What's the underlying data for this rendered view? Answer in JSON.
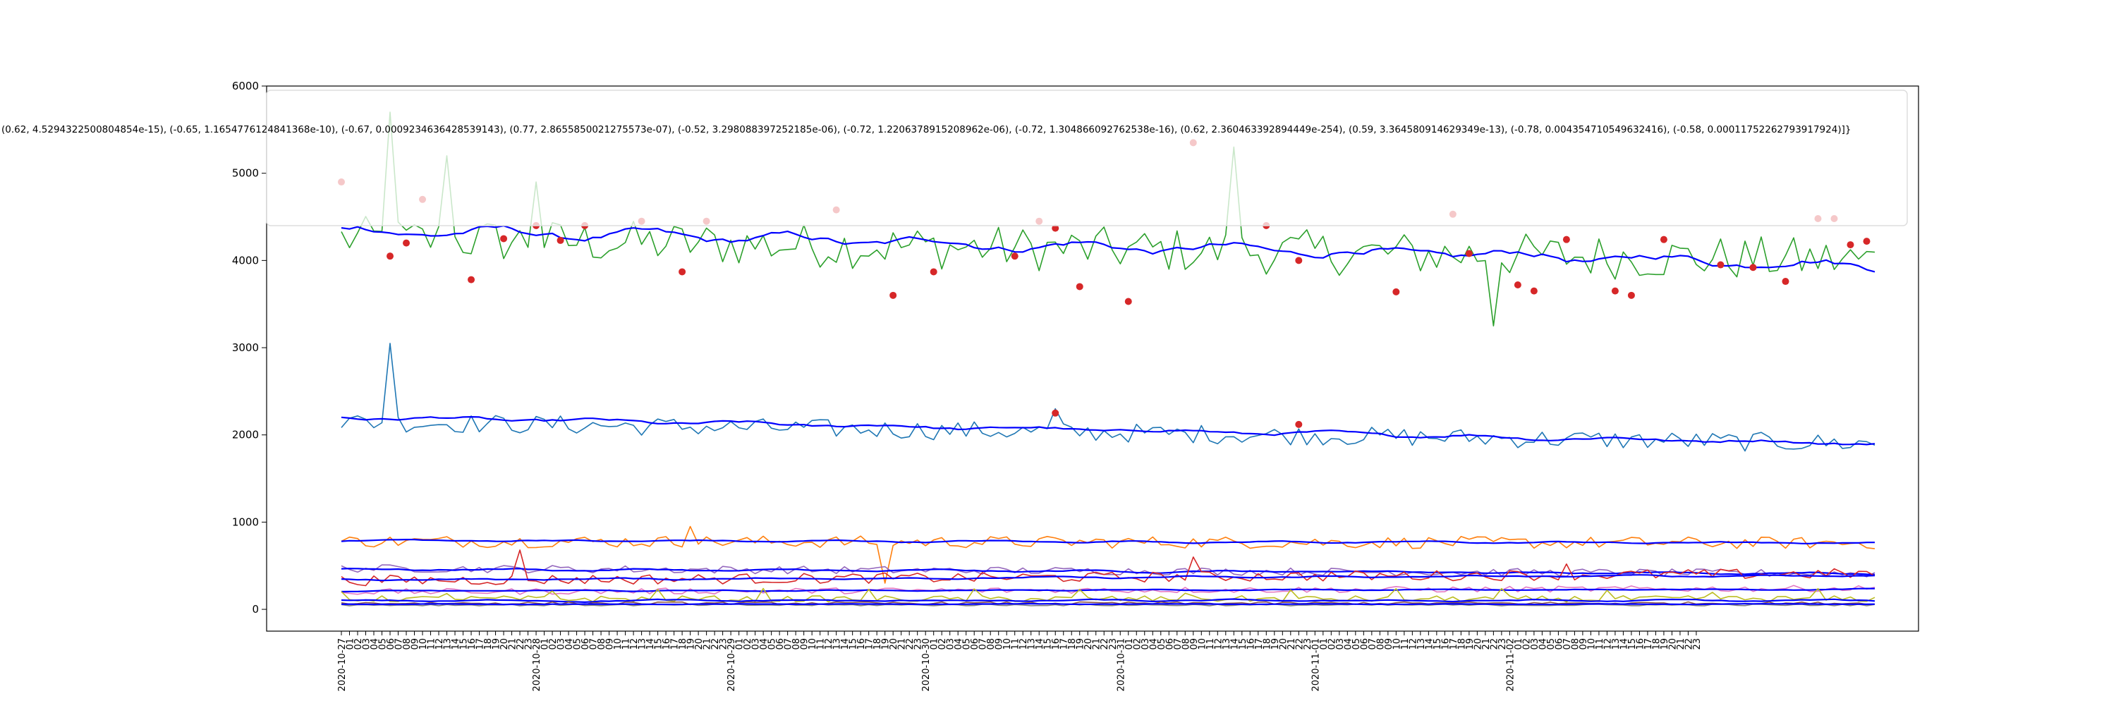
{
  "chart_data": {
    "type": "line",
    "title": "",
    "xlabel": "",
    "ylabel": "",
    "ylim": [
      -250,
      6000
    ],
    "yticks": [
      0,
      1000,
      2000,
      3000,
      4000,
      5000,
      6000
    ],
    "date_labels": [
      "2020-10-27",
      "2020-10-28",
      "2020-10-29",
      "2020-10-30",
      "2020-10-31",
      "2020-11-01",
      "2020-11-02"
    ],
    "hour_labels": [
      "01",
      "02",
      "03",
      "04",
      "05",
      "06",
      "07",
      "08",
      "09",
      "10",
      "11",
      "12",
      "13",
      "14",
      "15",
      "16",
      "17",
      "18",
      "19",
      "20",
      "21",
      "22",
      "23"
    ],
    "n_points": 168,
    "annotation_text": "(0.62, 4.5294322500804854e-15), (-0.65, 1.1654776124841368e-10), (-0.67, 0.0009234636428539143), (0.77, 2.8655850021275573e-07), (-0.52, 3.298088397252185e-06), (-0.72, 1.2206378915208962e-06), (-0.72, 1.304866092762538e-16), (0.62, 2.360463392894449e-254), (0.59, 3.364580914629349e-13), (-0.78, 0.004354710549632416), (-0.58, 0.00011752262793917924)]}",
    "colors": {
      "green": "#2ca02c",
      "blue": "#0000ff",
      "steel": "#1f77b4",
      "orange": "#ff7f0e",
      "red": "#d62728",
      "purple": "#9467bd",
      "magenta": "#e377c2",
      "olive": "#bcbd22",
      "brown": "#8c564b",
      "gray": "#7f7f7f",
      "marker": "#d62728"
    },
    "series": [
      {
        "color": "green",
        "base": 4250,
        "trend": -250,
        "noise": 260,
        "smooth": false,
        "spikes": [
          [
            6,
            5700
          ],
          [
            13,
            5200
          ],
          [
            24,
            4900
          ],
          [
            110,
            5300
          ],
          [
            142,
            3250
          ]
        ]
      },
      {
        "color": "blue",
        "base": 4350,
        "trend": -400,
        "noise": 150,
        "smooth": true
      },
      {
        "color": "steel",
        "base": 2150,
        "trend": -250,
        "noise": 110,
        "smooth": false,
        "spikes": [
          [
            6,
            3050
          ],
          [
            88,
            2300
          ]
        ]
      },
      {
        "color": "blue",
        "base": 2200,
        "trend": -300,
        "noise": 60,
        "smooth": true
      },
      {
        "color": "orange",
        "base": 780,
        "trend": -20,
        "noise": 70,
        "smooth": false,
        "spikes": [
          [
            43,
            950
          ],
          [
            67,
            300
          ]
        ]
      },
      {
        "color": "blue",
        "base": 790,
        "trend": -30,
        "noise": 25,
        "smooth": true
      },
      {
        "color": "purple",
        "base": 470,
        "trend": -60,
        "noise": 45,
        "smooth": false
      },
      {
        "color": "blue",
        "base": 460,
        "trend": -50,
        "noise": 30,
        "smooth": true
      },
      {
        "color": "red",
        "base": 330,
        "trend": 80,
        "noise": 60,
        "smooth": false,
        "spikes": [
          [
            22,
            680
          ],
          [
            105,
            600
          ],
          [
            151,
            520
          ]
        ]
      },
      {
        "color": "blue",
        "base": 340,
        "trend": 50,
        "noise": 25,
        "smooth": true
      },
      {
        "color": "magenta",
        "base": 200,
        "trend": 40,
        "noise": 35,
        "smooth": false
      },
      {
        "color": "blue",
        "base": 210,
        "trend": 20,
        "noise": 15,
        "smooth": true
      },
      {
        "color": "olive",
        "base": 120,
        "trend": 0,
        "noise": 35,
        "smooth": false,
        "bumps": true
      },
      {
        "color": "blue",
        "base": 100,
        "trend": 0,
        "noise": 25,
        "smooth": true
      },
      {
        "color": "brown",
        "base": 70,
        "trend": 0,
        "noise": 15,
        "smooth": false
      },
      {
        "color": "gray",
        "base": 50,
        "trend": 0,
        "noise": 10,
        "smooth": false
      },
      {
        "color": "blue",
        "base": 60,
        "trend": 0,
        "noise": 8,
        "smooth": true
      }
    ],
    "markers": {
      "upper": [
        [
          0,
          4900
        ],
        [
          6,
          4050
        ],
        [
          8,
          4200
        ],
        [
          10,
          4700
        ],
        [
          16,
          3780
        ],
        [
          20,
          4250
        ],
        [
          24,
          4400
        ],
        [
          27,
          4230
        ],
        [
          30,
          4400
        ],
        [
          37,
          4450
        ],
        [
          42,
          3870
        ],
        [
          45,
          4450
        ],
        [
          61,
          4580
        ],
        [
          68,
          3600
        ],
        [
          73,
          3870
        ],
        [
          83,
          4050
        ],
        [
          86,
          4450
        ],
        [
          88,
          4370
        ],
        [
          91,
          3700
        ],
        [
          97,
          3530
        ],
        [
          105,
          5350
        ],
        [
          114,
          4400
        ],
        [
          118,
          4000
        ],
        [
          130,
          3640
        ],
        [
          137,
          4530
        ],
        [
          139,
          4080
        ],
        [
          145,
          3720
        ],
        [
          147,
          3650
        ],
        [
          151,
          4240
        ],
        [
          157,
          3650
        ],
        [
          159,
          3600
        ],
        [
          163,
          4240
        ],
        [
          170,
          3950
        ],
        [
          174,
          3920
        ],
        [
          178,
          3760
        ],
        [
          182,
          4480
        ],
        [
          184,
          4480
        ],
        [
          186,
          4180
        ],
        [
          188,
          4220
        ]
      ],
      "lower": [
        [
          88,
          2250
        ],
        [
          118,
          2120
        ]
      ]
    }
  }
}
